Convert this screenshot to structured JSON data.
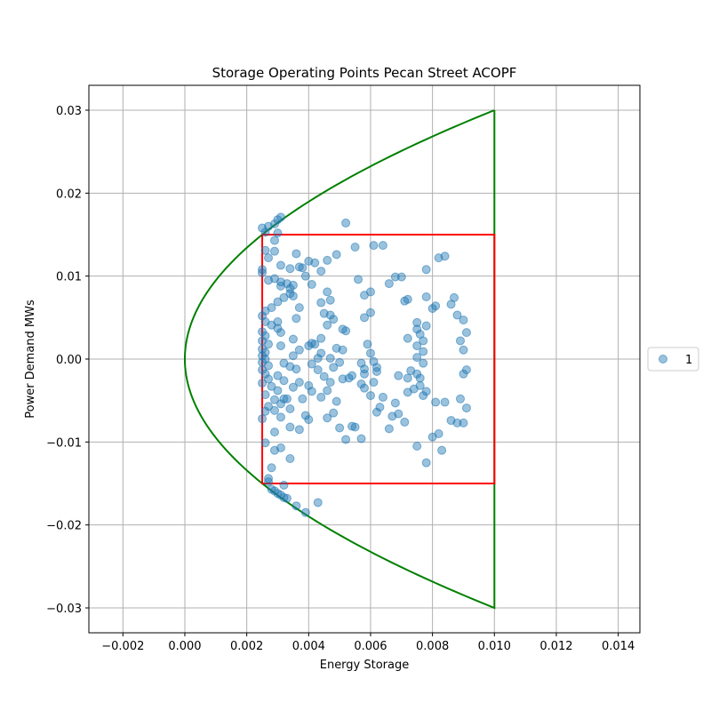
{
  "chart_data": {
    "type": "scatter",
    "title": "Storage Operating Points Pecan Street ACOPF",
    "xlabel": "Energy Storage",
    "ylabel": "Power Demand MWs",
    "xlim": [
      -0.0031,
      0.0147
    ],
    "ylim": [
      -0.033,
      0.033
    ],
    "x_ticks": [
      -0.002,
      0.0,
      0.002,
      0.004,
      0.006,
      0.008,
      0.01,
      0.012,
      0.014
    ],
    "x_tick_labels": [
      "−0.002",
      "0.000",
      "0.002",
      "0.004",
      "0.006",
      "0.008",
      "0.010",
      "0.012",
      "0.014"
    ],
    "y_ticks": [
      -0.03,
      -0.02,
      -0.01,
      0.0,
      0.01,
      0.02,
      0.03
    ],
    "y_tick_labels": [
      "−0.03",
      "−0.02",
      "−0.01",
      "0.00",
      "0.01",
      "0.02",
      "0.03"
    ],
    "grid": true,
    "legend": {
      "position": "outside-right",
      "entries": [
        "1"
      ]
    },
    "colors": {
      "points": "#1f77b4",
      "boundary": "#008000",
      "box": "#ff0000",
      "grid": "#b0b0b0"
    },
    "boundary": {
      "description_type": "parabola x = c*y^2 closed at x = 0.010",
      "vertex": [
        0.0,
        0.0
      ],
      "end_points": [
        [
          0.01,
          0.03
        ],
        [
          0.01,
          -0.03
        ]
      ]
    },
    "box": {
      "x": [
        0.0025,
        0.01
      ],
      "y": [
        -0.015,
        0.015
      ]
    },
    "series": [
      {
        "name": "1",
        "points": [
          [
            0.0025,
            0.0158
          ],
          [
            0.0026,
            0.0153
          ],
          [
            0.0027,
            0.016
          ],
          [
            0.0029,
            0.0163
          ],
          [
            0.003,
            0.0168
          ],
          [
            0.0031,
            0.0171
          ],
          [
            0.003,
            0.0152
          ],
          [
            0.0029,
            0.0143
          ],
          [
            0.0026,
            0.0131
          ],
          [
            0.0027,
            0.0122
          ],
          [
            0.0025,
            0.0108
          ],
          [
            0.0025,
            0.0104
          ],
          [
            0.0027,
            0.0095
          ],
          [
            0.0029,
            0.0097
          ],
          [
            0.0031,
            0.0093
          ],
          [
            0.0033,
            0.0091
          ],
          [
            0.0035,
            0.0089
          ],
          [
            0.0034,
            0.0079
          ],
          [
            0.0032,
            0.0074
          ],
          [
            0.003,
            0.0069
          ],
          [
            0.0028,
            0.0062
          ],
          [
            0.0026,
            0.0058
          ],
          [
            0.0025,
            0.0052
          ],
          [
            0.0026,
            0.0045
          ],
          [
            0.0028,
            0.0041
          ],
          [
            0.003,
            0.0037
          ],
          [
            0.0031,
            0.0032
          ],
          [
            0.0025,
            0.0033
          ],
          [
            0.0026,
            0.0028
          ],
          [
            0.0025,
            0.0022
          ],
          [
            0.0027,
            0.0018
          ],
          [
            0.0025,
            0.0012
          ],
          [
            0.0026,
            0.0008
          ],
          [
            0.0025,
            0.0004
          ],
          [
            0.0026,
            0.0
          ],
          [
            0.0025,
            -0.0004
          ],
          [
            0.0027,
            -0.0008
          ],
          [
            0.0025,
            -0.0013
          ],
          [
            0.0026,
            -0.0018
          ],
          [
            0.0027,
            -0.0024
          ],
          [
            0.0025,
            -0.0029
          ],
          [
            0.0028,
            -0.0033
          ],
          [
            0.003,
            -0.0038
          ],
          [
            0.0026,
            -0.0043
          ],
          [
            0.0029,
            -0.0049
          ],
          [
            0.0031,
            -0.0054
          ],
          [
            0.0027,
            -0.0057
          ],
          [
            0.0026,
            -0.0063
          ],
          [
            0.0025,
            -0.0072
          ],
          [
            0.0029,
            -0.0088
          ],
          [
            0.0026,
            -0.0101
          ],
          [
            0.0029,
            -0.011
          ],
          [
            0.0031,
            -0.0107
          ],
          [
            0.0034,
            -0.012
          ],
          [
            0.0028,
            -0.0131
          ],
          [
            0.0027,
            -0.0144
          ],
          [
            0.0027,
            -0.0148
          ],
          [
            0.0032,
            -0.0152
          ],
          [
            0.0028,
            -0.0157
          ],
          [
            0.0029,
            -0.0159
          ],
          [
            0.003,
            -0.0162
          ],
          [
            0.0031,
            -0.0164
          ],
          [
            0.0032,
            -0.0167
          ],
          [
            0.0033,
            -0.0168
          ],
          [
            0.0036,
            -0.0177
          ],
          [
            0.0039,
            -0.0185
          ],
          [
            0.0043,
            -0.0173
          ],
          [
            0.0029,
            0.013
          ],
          [
            0.0031,
            0.0113
          ],
          [
            0.0034,
            0.0109
          ],
          [
            0.0037,
            0.0111
          ],
          [
            0.0038,
            0.011
          ],
          [
            0.0036,
            0.0127
          ],
          [
            0.0039,
            0.01
          ],
          [
            0.0041,
            0.009
          ],
          [
            0.004,
            0.0118
          ],
          [
            0.0042,
            0.0116
          ],
          [
            0.0044,
            0.0106
          ],
          [
            0.0046,
            0.0119
          ],
          [
            0.0049,
            0.0126
          ],
          [
            0.0052,
            0.0164
          ],
          [
            0.0055,
            0.0135
          ],
          [
            0.0061,
            0.0137
          ],
          [
            0.0064,
            0.0137
          ],
          [
            0.0056,
            0.0096
          ],
          [
            0.0058,
            0.0077
          ],
          [
            0.006,
            0.0081
          ],
          [
            0.0066,
            0.0091
          ],
          [
            0.0068,
            0.0099
          ],
          [
            0.007,
            0.0099
          ],
          [
            0.0072,
            0.0072
          ],
          [
            0.0071,
            0.007
          ],
          [
            0.0078,
            0.0108
          ],
          [
            0.0082,
            0.0122
          ],
          [
            0.0084,
            0.0124
          ],
          [
            0.008,
            0.0061
          ],
          [
            0.0081,
            0.0064
          ],
          [
            0.0086,
            0.0066
          ],
          [
            0.0087,
            0.0074
          ],
          [
            0.0088,
            0.0053
          ],
          [
            0.009,
            0.0047
          ],
          [
            0.0091,
            0.0032
          ],
          [
            0.0089,
            0.0022
          ],
          [
            0.009,
            0.0011
          ],
          [
            0.0091,
            -0.0013
          ],
          [
            0.009,
            -0.0018
          ],
          [
            0.0089,
            -0.0048
          ],
          [
            0.0091,
            -0.0059
          ],
          [
            0.0088,
            -0.0077
          ],
          [
            0.0086,
            -0.0074
          ],
          [
            0.009,
            -0.0077
          ],
          [
            0.0084,
            -0.0052
          ],
          [
            0.0081,
            -0.0052
          ],
          [
            0.0083,
            -0.011
          ],
          [
            0.0082,
            -0.009
          ],
          [
            0.008,
            -0.0094
          ],
          [
            0.0078,
            -0.0125
          ],
          [
            0.0075,
            -0.0105
          ],
          [
            0.0074,
            -0.0036
          ],
          [
            0.0072,
            -0.004
          ],
          [
            0.0071,
            -0.0076
          ],
          [
            0.0069,
            -0.0066
          ],
          [
            0.0067,
            -0.0069
          ],
          [
            0.0066,
            -0.0084
          ],
          [
            0.0068,
            -0.0053
          ],
          [
            0.0063,
            -0.0058
          ],
          [
            0.0062,
            -0.0064
          ],
          [
            0.0064,
            -0.0046
          ],
          [
            0.0061,
            -0.0028
          ],
          [
            0.006,
            -0.0044
          ],
          [
            0.0058,
            -0.0035
          ],
          [
            0.0057,
            -0.003
          ],
          [
            0.0058,
            -0.0012
          ],
          [
            0.0057,
            -0.0005
          ],
          [
            0.006,
            0.0007
          ],
          [
            0.0059,
            0.0018
          ],
          [
            0.006,
            0.0056
          ],
          [
            0.0055,
            -0.0082
          ],
          [
            0.0054,
            -0.0081
          ],
          [
            0.0057,
            -0.0096
          ],
          [
            0.0052,
            -0.0097
          ],
          [
            0.005,
            -0.0083
          ],
          [
            0.0051,
            -0.0024
          ],
          [
            0.005,
            -0.0004
          ],
          [
            0.0049,
            0.0013
          ],
          [
            0.0048,
            0.0048
          ],
          [
            0.0047,
            0.0071
          ],
          [
            0.0046,
            0.0081
          ],
          [
            0.0044,
            0.0068
          ],
          [
            0.0045,
            0.0055
          ],
          [
            0.0047,
            0.0053
          ],
          [
            0.0046,
            0.0041
          ],
          [
            0.0044,
            0.0025
          ],
          [
            0.0042,
            0.0018
          ],
          [
            0.0044,
            0.0007
          ],
          [
            0.0043,
            0.0001
          ],
          [
            0.0041,
            -0.0006
          ],
          [
            0.0043,
            -0.0013
          ],
          [
            0.0045,
            -0.0021
          ],
          [
            0.0047,
            -0.0028
          ],
          [
            0.0046,
            -0.0038
          ],
          [
            0.0044,
            -0.0046
          ],
          [
            0.0041,
            -0.0039
          ],
          [
            0.004,
            -0.0032
          ],
          [
            0.0038,
            -0.0048
          ],
          [
            0.0039,
            -0.0068
          ],
          [
            0.004,
            -0.0073
          ],
          [
            0.0037,
            -0.0085
          ],
          [
            0.0034,
            -0.0082
          ],
          [
            0.0034,
            -0.006
          ],
          [
            0.0033,
            -0.0048
          ],
          [
            0.0035,
            -0.0034
          ],
          [
            0.0037,
            -0.0028
          ],
          [
            0.0036,
            -0.0012
          ],
          [
            0.0034,
            -0.0009
          ],
          [
            0.0035,
            0.0004
          ],
          [
            0.0037,
            0.0011
          ],
          [
            0.0035,
            0.0024
          ],
          [
            0.0036,
            0.0049
          ],
          [
            0.0037,
            0.0062
          ],
          [
            0.0035,
            0.0076
          ],
          [
            0.0034,
            0.0085
          ],
          [
            0.0031,
            0.0088
          ],
          [
            0.003,
            0.0045
          ],
          [
            0.0031,
            0.0016
          ],
          [
            0.0032,
            -0.0005
          ],
          [
            0.003,
            -0.002
          ],
          [
            0.0032,
            -0.0026
          ],
          [
            0.0029,
            -0.0062
          ],
          [
            0.0031,
            -0.007
          ],
          [
            0.0032,
            -0.0048
          ],
          [
            0.0046,
            -0.0071
          ],
          [
            0.0048,
            -0.0065
          ],
          [
            0.0049,
            -0.0051
          ],
          [
            0.0052,
            0.0034
          ],
          [
            0.0051,
            0.0036
          ],
          [
            0.0053,
            -0.0023
          ],
          [
            0.0051,
            0.0011
          ],
          [
            0.004,
            0.0016
          ],
          [
            0.0041,
            0.0019
          ],
          [
            0.0047,
            0.0001
          ],
          [
            0.0048,
            -0.001
          ],
          [
            0.0054,
            -0.002
          ],
          [
            0.0075,
            0.0044
          ],
          [
            0.0076,
            0.003
          ],
          [
            0.0077,
            0.0022
          ],
          [
            0.0075,
            0.0016
          ],
          [
            0.0077,
            0.0009
          ],
          [
            0.0075,
            0.0002
          ],
          [
            0.0077,
            -0.0005
          ],
          [
            0.0075,
            -0.0018
          ],
          [
            0.0076,
            -0.0023
          ],
          [
            0.0073,
            -0.0014
          ],
          [
            0.0072,
            -0.0023
          ],
          [
            0.0069,
            -0.002
          ],
          [
            0.0075,
            0.0036
          ],
          [
            0.0078,
            0.004
          ],
          [
            0.0078,
            0.0075
          ],
          [
            0.0072,
            0.0025
          ],
          [
            0.0076,
            -0.0032
          ],
          [
            0.0078,
            -0.0039
          ],
          [
            0.0077,
            -0.0044
          ],
          [
            0.0058,
            0.005
          ],
          [
            0.0061,
            -0.0003
          ],
          [
            0.0062,
            -0.001
          ],
          [
            0.0062,
            -0.0015
          ],
          [
            0.0058,
            -0.0018
          ]
        ]
      }
    ]
  }
}
